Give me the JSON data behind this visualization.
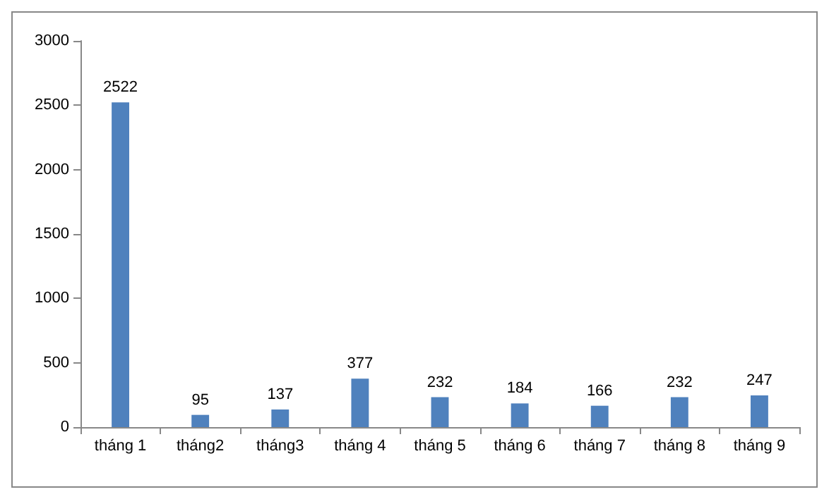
{
  "chart_data": {
    "type": "bar",
    "categories": [
      "tháng 1",
      "tháng2",
      "tháng3",
      "tháng 4",
      "tháng 5",
      "tháng 6",
      "tháng 7",
      "tháng 8",
      "tháng 9"
    ],
    "values": [
      2522,
      95,
      137,
      377,
      232,
      184,
      166,
      232,
      247
    ],
    "color": "#4f81bd",
    "ylim": [
      0,
      3000
    ],
    "yticks": [
      0,
      500,
      1000,
      1500,
      2000,
      2500,
      3000
    ],
    "grid": false,
    "data_labels": true
  }
}
